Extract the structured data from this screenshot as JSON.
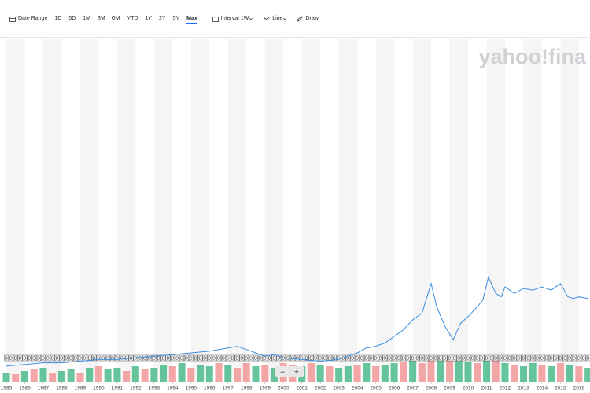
{
  "toolbar": {
    "date_range": "Date Range",
    "ranges": [
      "1D",
      "5D",
      "1M",
      "3M",
      "6M",
      "YTD",
      "1Y",
      "2Y",
      "5Y",
      "Max"
    ],
    "active_range": 9,
    "interval_label": "Interval",
    "interval_value": "1W",
    "chart_style": "Line",
    "draw": "Draw"
  },
  "watermark": "yahoo!fina",
  "chart_data": {
    "type": "line",
    "xlim": [
      1984.66,
      2016.6
    ],
    "xticks": [
      1985,
      1986,
      1987,
      1988,
      1989,
      1990,
      1991,
      1992,
      1993,
      1994,
      1995,
      1996,
      1997,
      1998,
      1999,
      2000,
      2001,
      2002,
      2003,
      2004,
      2005,
      2006,
      2007,
      2008,
      2009,
      2010,
      2011,
      2012,
      2013,
      2014,
      2015,
      2016
    ],
    "ylim": [
      0,
      100
    ],
    "series": [
      {
        "color": "#3b8de0",
        "x": [
          1985,
          1986,
          1987,
          1988,
          1989,
          1990,
          1991,
          1992,
          1993,
          1994,
          1995,
          1996,
          1997,
          1997.5,
          1998,
          1998.5,
          1999,
          1999.5,
          2000,
          2001,
          2002,
          2003,
          2003.5,
          2004,
          2004.5,
          2005,
          2005.5,
          2006,
          2006.5,
          2007,
          2007.5,
          2008,
          2008.3,
          2008.75,
          2009.2,
          2009.6,
          2010,
          2010.5,
          2010.8,
          2011.1,
          2011.5,
          2011.8,
          2012,
          2012.5,
          2013,
          2013.5,
          2014,
          2014.5,
          2015,
          2015.4,
          2015.7,
          2016,
          2016.5
        ],
        "values": [
          1,
          1.5,
          2,
          2,
          2.5,
          3,
          3,
          3.5,
          4,
          4.5,
          5,
          5.5,
          6.5,
          7,
          6,
          5,
          4,
          4.5,
          3.5,
          3,
          2.5,
          3,
          4,
          5,
          6.5,
          7,
          8,
          10,
          12,
          15,
          17,
          26,
          19,
          13,
          9,
          14,
          16,
          19,
          21,
          28,
          23,
          22,
          25,
          23,
          24.5,
          24,
          25,
          24,
          26,
          22,
          21.5,
          22,
          21.5
        ]
      }
    ],
    "volume": {
      "vlim": [
        0,
        100
      ],
      "x": [
        1985,
        1985.5,
        1986,
        1986.5,
        1987,
        1987.5,
        1988,
        1988.5,
        1989,
        1989.5,
        1990,
        1990.5,
        1991,
        1991.5,
        1992,
        1992.5,
        1993,
        1993.5,
        1994,
        1994.5,
        1995,
        1995.5,
        1996,
        1996.5,
        1997,
        1997.5,
        1998,
        1998.5,
        1999,
        1999.5,
        2000,
        2000.5,
        2001,
        2001.5,
        2002,
        2002.5,
        2003,
        2003.5,
        2004,
        2004.5,
        2005,
        2005.5,
        2006,
        2006.5,
        2007,
        2007.5,
        2008,
        2008.5,
        2009,
        2009.5,
        2010,
        2010.5,
        2011,
        2011.5,
        2012,
        2012.5,
        2013,
        2013.5,
        2014,
        2014.5,
        2015,
        2015.5,
        2016,
        2016.5
      ],
      "values": [
        30,
        25,
        35,
        40,
        45,
        30,
        35,
        40,
        30,
        45,
        50,
        40,
        45,
        35,
        50,
        40,
        45,
        55,
        50,
        60,
        45,
        55,
        50,
        60,
        55,
        45,
        60,
        50,
        55,
        45,
        60,
        55,
        50,
        60,
        55,
        50,
        45,
        50,
        55,
        60,
        50,
        55,
        60,
        65,
        70,
        60,
        75,
        80,
        85,
        70,
        65,
        60,
        75,
        70,
        60,
        55,
        50,
        60,
        55,
        50,
        60,
        55,
        50,
        45
      ],
      "colors": [
        "#34b27d",
        "#f08a8a",
        "#34b27d",
        "#f08a8a",
        "#34b27d",
        "#f08a8a",
        "#34b27d",
        "#34b27d",
        "#f08a8a",
        "#34b27d",
        "#f08a8a",
        "#34b27d",
        "#34b27d",
        "#f08a8a",
        "#34b27d",
        "#f08a8a",
        "#34b27d",
        "#34b27d",
        "#f08a8a",
        "#34b27d",
        "#f08a8a",
        "#34b27d",
        "#34b27d",
        "#f08a8a",
        "#34b27d",
        "#f08a8a",
        "#f08a8a",
        "#34b27d",
        "#f08a8a",
        "#34b27d",
        "#f08a8a",
        "#f08a8a",
        "#34b27d",
        "#f08a8a",
        "#34b27d",
        "#f08a8a",
        "#34b27d",
        "#34b27d",
        "#f08a8a",
        "#34b27d",
        "#f08a8a",
        "#34b27d",
        "#34b27d",
        "#f08a8a",
        "#34b27d",
        "#f08a8a",
        "#f08a8a",
        "#34b27d",
        "#f08a8a",
        "#34b27d",
        "#34b27d",
        "#f08a8a",
        "#34b27d",
        "#f08a8a",
        "#34b27d",
        "#f08a8a",
        "#34b27d",
        "#34b27d",
        "#f08a8a",
        "#34b27d",
        "#f08a8a",
        "#34b27d",
        "#f08a8a",
        "#34b27d"
      ]
    },
    "dividends": {
      "label": "D",
      "x": [
        1985,
        1985.25,
        1985.5,
        1985.75,
        1986,
        1986.25,
        1986.5,
        1986.75,
        1987,
        1987.25,
        1987.5,
        1987.75,
        1988,
        1988.25,
        1988.5,
        1988.75,
        1989,
        1989.25,
        1989.5,
        1989.75,
        1990,
        1990.25,
        1990.5,
        1990.75,
        1991,
        1991.25,
        1991.5,
        1991.75,
        1992,
        1992.25,
        1992.5,
        1992.75,
        1993,
        1993.25,
        1993.5,
        1993.75,
        1994,
        1994.25,
        1994.5,
        1994.75,
        1995,
        1995.25,
        1995.5,
        1995.75,
        1996,
        1996.25,
        1996.5,
        1996.75,
        1997,
        1997.25,
        1997.5,
        1997.75,
        1998,
        1998.25,
        1998.5,
        1998.75,
        1999,
        1999.25,
        1999.5,
        1999.75,
        2000,
        2000.25,
        2000.5,
        2000.75,
        2001,
        2001.25,
        2001.5,
        2001.75,
        2002,
        2002.25,
        2002.5,
        2002.75,
        2003,
        2003.25,
        2003.5,
        2003.75,
        2004,
        2004.25,
        2004.5,
        2004.75,
        2005,
        2005.25,
        2005.5,
        2005.75,
        2006,
        2006.25,
        2006.5,
        2006.75,
        2007,
        2007.25,
        2007.5,
        2007.75,
        2008,
        2008.25,
        2008.5,
        2008.75,
        2009,
        2009.25,
        2009.5,
        2009.75,
        2010,
        2010.25,
        2010.5,
        2010.75,
        2011,
        2011.25,
        2011.5,
        2011.75,
        2012,
        2012.25,
        2012.5,
        2012.75,
        2013,
        2013.25,
        2013.5,
        2013.75,
        2014,
        2014.25,
        2014.5,
        2014.75,
        2015,
        2015.25,
        2015.5,
        2015.75,
        2016,
        2016.25,
        2016.5
      ]
    },
    "zoom_out": "−",
    "zoom_in": "+"
  }
}
